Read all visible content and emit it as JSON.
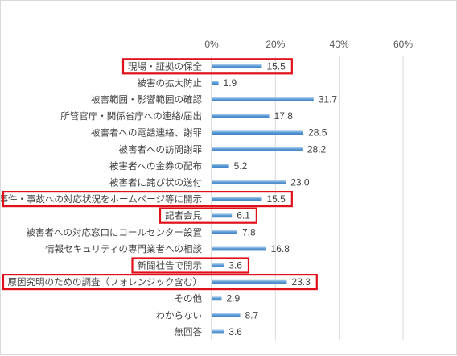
{
  "chart_data": {
    "type": "bar",
    "orientation": "horizontal",
    "categories": [
      "現場・証拠の保全",
      "被害の拡大防止",
      "被害範囲・影響範囲の確認",
      "所管官庁・関係省庁への連絡/届出",
      "被害者への電話連絡、謝罪",
      "被害者への訪問謝罪",
      "被害者への金券の配布",
      "被害者に詫び状の送付",
      "事件・事故への対応状況をホームページ等に開示",
      "記者会見",
      "被害者への対応窓口にコールセンター設置",
      "情報セキュリティの専門業者への相談",
      "新聞社告で開示",
      "原因究明のための調査（フォレンジック含む）",
      "その他",
      "わからない",
      "無回答"
    ],
    "values": [
      15.5,
      1.9,
      31.7,
      17.8,
      28.5,
      28.2,
      5.2,
      23.0,
      15.5,
      6.1,
      7.8,
      16.8,
      3.6,
      23.3,
      2.9,
      8.7,
      3.6
    ],
    "value_labels": [
      "15.5",
      "1.9",
      "31.7",
      "17.8",
      "28.5",
      "28.2",
      "5.2",
      "23.0",
      "15.5",
      "6.1",
      "7.8",
      "16.8",
      "3.6",
      "23.3",
      "2.9",
      "8.7",
      "3.6"
    ],
    "highlighted": [
      0,
      8,
      9,
      12,
      13
    ],
    "x_ticks": [
      "0%",
      "20%",
      "40%",
      "60%"
    ],
    "xlim": [
      0,
      60
    ],
    "grid": true,
    "legend": "none",
    "colors": {
      "bar_light": "#bdd7ee",
      "bar_dark": "#4f86c6",
      "highlight_box": "#e0101a",
      "grid": "#d9d9d9",
      "axis": "#bfbfbf"
    }
  }
}
